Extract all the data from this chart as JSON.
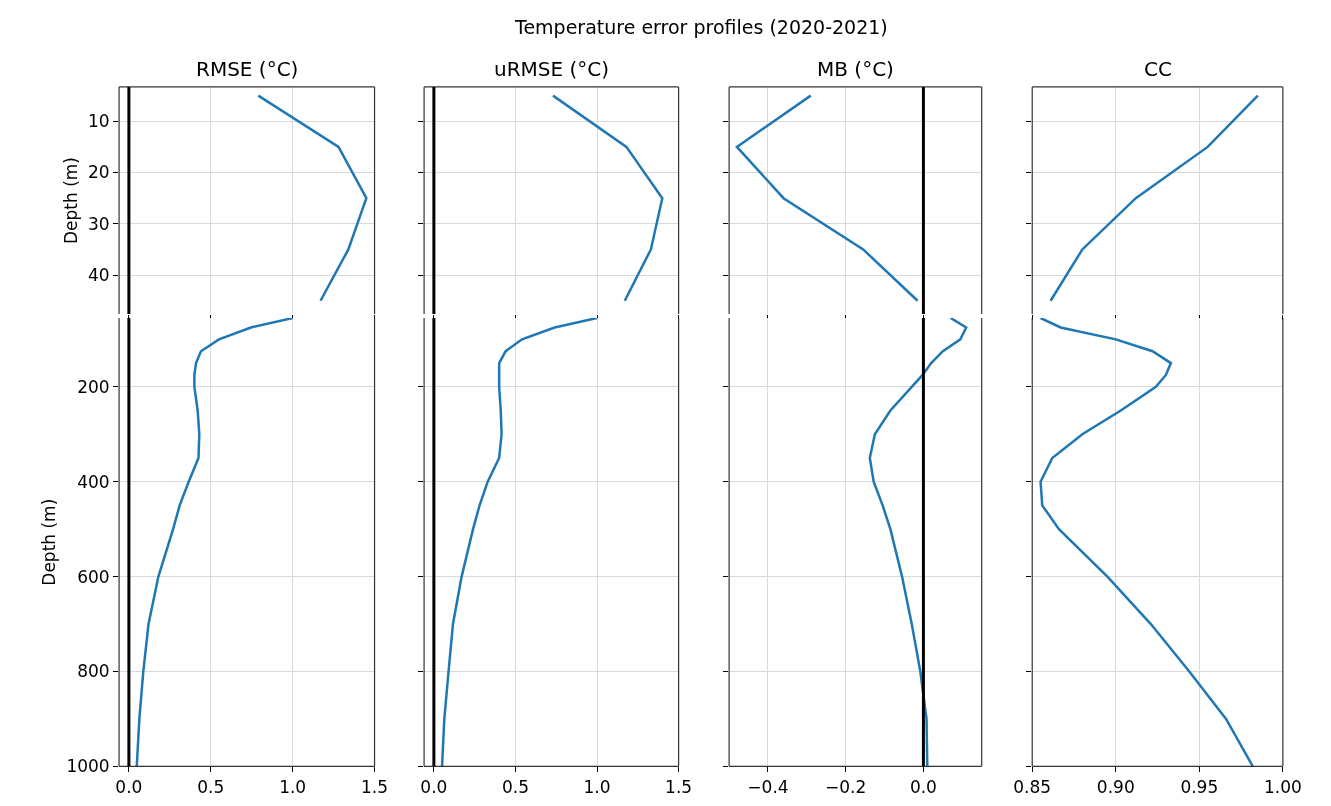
{
  "chart_data": [
    {
      "type": "line",
      "title": "RMSE (°C)",
      "ylabel": "Depth (m)",
      "annotations": [
        "Temperature error profiles (2020-2021)"
      ],
      "grid": true,
      "tick_labels": "y",
      "xlim": [
        -0.06,
        1.5
      ],
      "xticks": [
        {
          "value": 0,
          "label": null
        },
        {
          "value": 0.5,
          "label": null
        },
        {
          "value": 1,
          "label": null
        },
        {
          "value": 1.5,
          "label": null
        }
      ],
      "ylim": [
        47.6,
        3.3
      ],
      "yticks": [
        10,
        20,
        30,
        40
      ],
      "ref_lines": [
        {
          "axis": "x",
          "value": 0,
          "color": "#000000"
        }
      ],
      "series": [
        {
          "color": "#1f77b4",
          "x": [
            0.79,
            1.28,
            1.45,
            1.34,
            1.17
          ],
          "values": [
            5,
            15,
            25,
            35,
            45
          ]
        }
      ]
    },
    {
      "type": "line",
      "title": "uRMSE (°C)",
      "grid": true,
      "tick_labels": false,
      "xlim": [
        -0.06,
        1.5
      ],
      "xticks": [
        {
          "value": 0,
          "label": null
        },
        {
          "value": 0.5,
          "label": null
        },
        {
          "value": 1,
          "label": null
        },
        {
          "value": 1.5,
          "label": null
        }
      ],
      "ylim": [
        47.6,
        3.3
      ],
      "yticks": [
        10,
        20,
        30,
        40
      ],
      "ref_lines": [
        {
          "axis": "x",
          "value": 0,
          "color": "#000000"
        }
      ],
      "series": [
        {
          "color": "#1f77b4",
          "x": [
            0.73,
            1.18,
            1.4,
            1.33,
            1.17
          ],
          "values": [
            5,
            15,
            25,
            35,
            45
          ]
        }
      ]
    },
    {
      "type": "line",
      "title": "MB (°C)",
      "grid": true,
      "tick_labels": false,
      "xlim": [
        -0.5,
        0.15
      ],
      "xticks": [
        {
          "value": -0.4,
          "label": null
        },
        {
          "value": -0.2,
          "label": null
        },
        {
          "value": 0,
          "label": null
        }
      ],
      "ylim": [
        47.6,
        3.3
      ],
      "yticks": [
        10,
        20,
        30,
        40
      ],
      "ref_lines": [
        {
          "axis": "x",
          "value": 0,
          "color": "#000000"
        }
      ],
      "series": [
        {
          "color": "#1f77b4",
          "x": [
            -0.29,
            -0.48,
            -0.36,
            -0.155,
            -0.015
          ],
          "values": [
            5,
            15,
            25,
            35,
            45
          ]
        }
      ]
    },
    {
      "type": "line",
      "title": "CC",
      "grid": true,
      "tick_labels": false,
      "xlim": [
        0.85,
        1.0
      ],
      "xticks": [
        {
          "value": 0.85,
          "label": null
        },
        {
          "value": 0.9,
          "label": null
        },
        {
          "value": 0.95,
          "label": null
        },
        {
          "value": 1,
          "label": null
        }
      ],
      "ylim": [
        47.6,
        3.3
      ],
      "yticks": [
        10,
        20,
        30,
        40
      ],
      "series": [
        {
          "color": "#1f77b4",
          "x": [
            0.985,
            0.955,
            0.912,
            0.88,
            0.861
          ],
          "values": [
            5,
            15,
            25,
            35,
            45
          ]
        }
      ]
    },
    {
      "type": "line",
      "ylabel": "Depth (m)",
      "grid": true,
      "xlim": [
        -0.06,
        1.5
      ],
      "xticks": [
        {
          "value": 0,
          "label": "0.0"
        },
        0.5,
        {
          "value": 1,
          "label": "1.0"
        },
        1.5
      ],
      "ylim": [
        1000,
        55
      ],
      "yticks": [
        200,
        400,
        600,
        800,
        1000
      ],
      "ref_lines": [
        {
          "axis": "x",
          "value": 0,
          "color": "#000000"
        }
      ],
      "series": [
        {
          "color": "#1f77b4",
          "x": [
            1.0,
            0.745,
            0.55,
            0.44,
            0.41,
            0.4,
            0.4,
            0.42,
            0.43,
            0.425,
            0.365,
            0.31,
            0.27,
            0.18,
            0.12,
            0.088,
            0.064,
            0.048
          ],
          "values": [
            55,
            75,
            100,
            125,
            150,
            175,
            200,
            250,
            300,
            350,
            400,
            450,
            500,
            600,
            700,
            800,
            900,
            1000
          ]
        }
      ]
    },
    {
      "type": "line",
      "grid": true,
      "tick_labels": "x",
      "xlim": [
        -0.06,
        1.5
      ],
      "xticks": [
        {
          "value": 0,
          "label": "0.0"
        },
        0.5,
        {
          "value": 1,
          "label": "1.0"
        },
        1.5
      ],
      "ylim": [
        1000,
        55
      ],
      "yticks": [
        200,
        400,
        600,
        800,
        1000
      ],
      "ref_lines": [
        {
          "axis": "x",
          "value": 0,
          "color": "#000000"
        }
      ],
      "series": [
        {
          "color": "#1f77b4",
          "x": [
            1.0,
            0.74,
            0.54,
            0.44,
            0.4,
            0.4,
            0.4,
            0.41,
            0.415,
            0.4,
            0.33,
            0.28,
            0.24,
            0.17,
            0.117,
            0.09,
            0.064,
            0.05
          ],
          "values": [
            55,
            75,
            100,
            125,
            150,
            175,
            200,
            250,
            300,
            350,
            400,
            450,
            500,
            600,
            700,
            800,
            900,
            1000
          ]
        }
      ]
    },
    {
      "type": "line",
      "grid": true,
      "tick_labels": "x",
      "xlim": [
        -0.5,
        0.15
      ],
      "xticks": [
        {
          "value": -0.4,
          "label": "−0.4"
        },
        {
          "value": -0.2,
          "label": "−0.2"
        },
        {
          "value": 0,
          "label": "0.0"
        }
      ],
      "ylim": [
        1000,
        55
      ],
      "yticks": [
        200,
        400,
        600,
        800,
        1000
      ],
      "ref_lines": [
        {
          "axis": "x",
          "value": 0,
          "color": "#000000"
        }
      ],
      "series": [
        {
          "color": "#1f77b4",
          "x": [
            0.07,
            0.11,
            0.095,
            0.05,
            0.02,
            -0.002,
            -0.03,
            -0.085,
            -0.125,
            -0.138,
            -0.128,
            -0.105,
            -0.085,
            -0.055,
            -0.03,
            -0.008,
            0.008,
            0.01
          ],
          "values": [
            55,
            75,
            100,
            125,
            150,
            175,
            200,
            250,
            300,
            350,
            400,
            450,
            500,
            600,
            700,
            800,
            900,
            1000
          ]
        }
      ]
    },
    {
      "type": "line",
      "grid": true,
      "tick_labels": "x",
      "xlim": [
        0.85,
        1.0
      ],
      "xticks": [
        0.85,
        {
          "value": 0.9,
          "label": "0.90"
        },
        0.95,
        {
          "value": 1,
          "label": "1.00"
        }
      ],
      "ylim": [
        1000,
        55
      ],
      "yticks": [
        200,
        400,
        600,
        800,
        1000
      ],
      "series": [
        {
          "color": "#1f77b4",
          "x": [
            0.855,
            0.867,
            0.9,
            0.922,
            0.933,
            0.93,
            0.924,
            0.903,
            0.88,
            0.862,
            0.855,
            0.856,
            0.866,
            0.895,
            0.921,
            0.944,
            0.966,
            0.982
          ],
          "values": [
            55,
            75,
            100,
            125,
            150,
            175,
            200,
            250,
            300,
            350,
            400,
            450,
            500,
            600,
            700,
            800,
            900,
            1000
          ]
        }
      ]
    }
  ]
}
